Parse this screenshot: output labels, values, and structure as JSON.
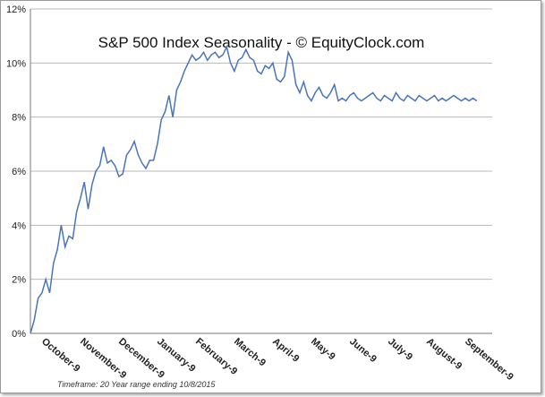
{
  "chart_data": {
    "type": "line",
    "title": "S&P 500 Index Seasonality - © EquityClock.com",
    "footnote": "Timeframe: 20 Year range ending 10/8/2015",
    "xlabel": "",
    "ylabel": "",
    "y_ticks": [
      "0%",
      "2%",
      "4%",
      "6%",
      "8%",
      "10%",
      "12%"
    ],
    "ylim": [
      0,
      12
    ],
    "x_ticks": [
      "October-9",
      "November-9",
      "December-9",
      "January-9",
      "February-9",
      "March-9",
      "April-9",
      "May-9",
      "June-9",
      "July-9",
      "August-9",
      "September-9"
    ],
    "grid": "horizontal",
    "legend": "none",
    "line_color": "#4a74b8",
    "series": [
      {
        "x": [
          0.0,
          0.1,
          0.2,
          0.3,
          0.4,
          0.5,
          0.6,
          0.7,
          0.8,
          0.9,
          1.0,
          1.1,
          1.2,
          1.3,
          1.4,
          1.5,
          1.6,
          1.7,
          1.8,
          1.9,
          2.0,
          2.1,
          2.2,
          2.3,
          2.4,
          2.5,
          2.6,
          2.7,
          2.8,
          2.9,
          3.0,
          3.1,
          3.2,
          3.3,
          3.4,
          3.5,
          3.6,
          3.7,
          3.8,
          3.9,
          4.0,
          4.1,
          4.2,
          4.3,
          4.4,
          4.5,
          4.6,
          4.7,
          4.8,
          4.9,
          5.0,
          5.1,
          5.2,
          5.3,
          5.4,
          5.5,
          5.6,
          5.7,
          5.8,
          5.9,
          6.0,
          6.1,
          6.2,
          6.3,
          6.4,
          6.5,
          6.6,
          6.7,
          6.8,
          6.9,
          7.0,
          7.1,
          7.2,
          7.3,
          7.4,
          7.5,
          7.6,
          7.7,
          7.8,
          7.9,
          8.0,
          8.1,
          8.2,
          8.3,
          8.4,
          8.5,
          8.6,
          8.7,
          8.8,
          8.9,
          9.0,
          9.1,
          9.2,
          9.3,
          9.4,
          9.5,
          9.6,
          9.7,
          9.8,
          9.9,
          10.0,
          10.1,
          10.2,
          10.3,
          10.4,
          10.5,
          10.6,
          10.7,
          10.8,
          10.9,
          11.0,
          11.1,
          11.2,
          11.3,
          11.4,
          11.5,
          11.6
        ],
        "values": [
          0.0,
          0.5,
          1.3,
          1.5,
          2.0,
          1.5,
          2.6,
          3.1,
          4.0,
          3.2,
          3.6,
          3.5,
          4.5,
          5.0,
          5.6,
          4.6,
          5.5,
          6.0,
          6.2,
          6.9,
          6.3,
          6.4,
          6.2,
          5.8,
          5.9,
          6.6,
          6.8,
          7.1,
          6.6,
          6.3,
          6.1,
          6.4,
          6.4,
          7.0,
          7.9,
          8.2,
          8.8,
          8.0,
          9.0,
          9.3,
          9.7,
          10.0,
          10.3,
          10.1,
          10.2,
          10.4,
          10.1,
          10.3,
          10.4,
          10.2,
          10.3,
          10.6,
          10.0,
          9.7,
          10.1,
          10.2,
          10.5,
          10.2,
          10.1,
          9.7,
          9.6,
          9.9,
          9.8,
          10.0,
          9.4,
          9.3,
          9.5,
          10.4,
          10.1,
          9.2,
          8.9,
          9.3,
          8.8,
          8.6,
          8.9,
          9.1,
          8.8,
          8.7,
          8.9,
          9.2,
          8.6,
          8.7,
          8.6,
          8.8,
          8.9,
          8.7,
          8.6,
          8.7,
          8.8,
          8.9,
          8.7,
          8.6,
          8.8,
          8.7,
          8.6,
          8.9,
          8.7,
          8.6,
          8.8,
          8.7,
          8.6,
          8.8,
          8.7,
          8.6,
          8.7,
          8.8,
          8.6,
          8.7,
          8.6,
          8.7,
          8.8,
          8.7,
          8.6,
          8.7,
          8.6,
          8.7,
          8.6
        ]
      }
    ]
  }
}
